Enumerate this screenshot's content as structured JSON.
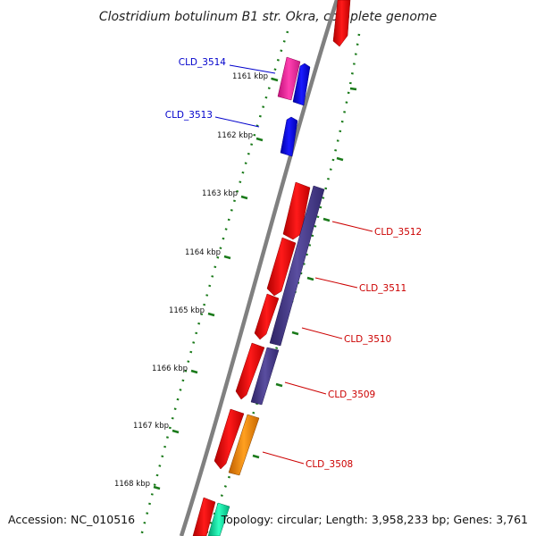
{
  "title": "Clostridium botulinum B1 str. Okra, complete genome",
  "accession_text": "Accession: NC_010516",
  "summary_text": "Topology: circular; Length: 3,958,233 bp; Genes: 3,761",
  "ticks": [
    {
      "label": "1161 kbp"
    },
    {
      "label": "1162 kbp"
    },
    {
      "label": "1163 kbp"
    },
    {
      "label": "1164 kbp"
    },
    {
      "label": "1165 kbp"
    },
    {
      "label": "1166 kbp"
    },
    {
      "label": "1167 kbp"
    },
    {
      "label": "1168 kbp"
    }
  ],
  "genes": [
    {
      "name": "CLD_3514",
      "strand": "reverse",
      "color": "#0000cc"
    },
    {
      "name": "CLD_3513",
      "strand": "reverse",
      "color": "#0000cc"
    },
    {
      "name": "CLD_3512",
      "strand": "forward",
      "color": "#cc0000"
    },
    {
      "name": "CLD_3511",
      "strand": "forward",
      "color": "#cc0000"
    },
    {
      "name": "CLD_3510",
      "strand": "forward",
      "color": "#cc0000"
    },
    {
      "name": "CLD_3509",
      "strand": "forward",
      "color": "#cc0000"
    },
    {
      "name": "CLD_3508",
      "strand": "forward",
      "color": "#cc0000"
    }
  ],
  "colors": {
    "backbone": "#808080",
    "forward_cds": "#ff0000",
    "reverse_cds": "#0000ff",
    "rna": "#ff33aa",
    "orf_purple": "#4b3f8c",
    "orf_orange": "#ff8c00",
    "orf_green": "#00e6a0",
    "tick": "#1a7a1a"
  }
}
